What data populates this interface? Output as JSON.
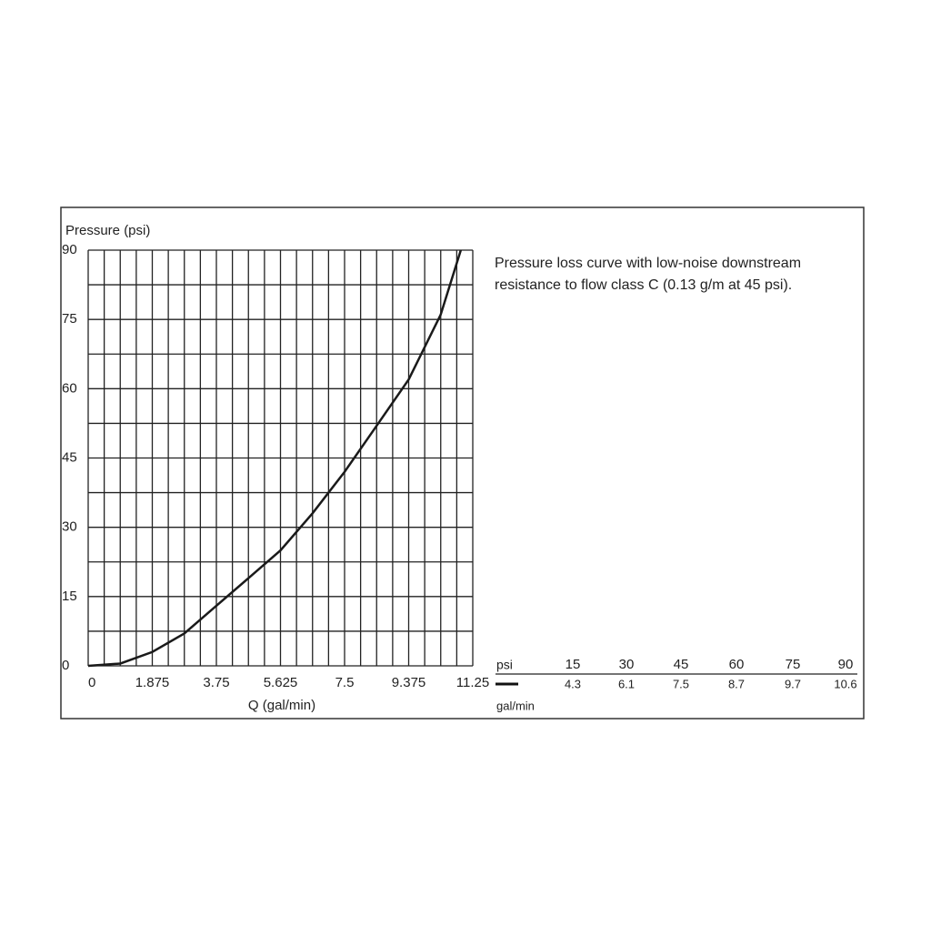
{
  "chart_data": {
    "type": "line",
    "y_label": "Pressure (psi)",
    "x_label": "Q (gal/min)",
    "annotation": "Pressure loss curve with low-noise downstream resistance to flow class C (0.13 g/m at 45 psi).",
    "x": [
      0,
      0.94,
      1.875,
      2.81,
      3.75,
      4.69,
      5.625,
      6.56,
      7.5,
      8.44,
      9.375,
      10.31,
      10.9
    ],
    "series": [
      {
        "name": "Pressure loss",
        "color": "#1a1a1a",
        "values": [
          0,
          0.5,
          3,
          7,
          13,
          19,
          25,
          33,
          42,
          52,
          62,
          76,
          90
        ]
      }
    ],
    "xlim": [
      0,
      11.25
    ],
    "ylim": [
      0,
      90
    ],
    "xticks": [
      0,
      1.875,
      3.75,
      5.625,
      7.5,
      9.375,
      11.25
    ],
    "yticks": [
      0,
      15,
      30,
      45,
      60,
      75,
      90
    ],
    "x_grid": [
      0,
      0.46875,
      0.9375,
      1.40625,
      1.875,
      2.34375,
      2.8125,
      3.28125,
      3.75,
      4.21875,
      4.6875,
      5.15625,
      5.625,
      6.09375,
      6.5625,
      7.03125,
      7.5,
      7.96875,
      8.4375,
      8.90625,
      9.375,
      9.84375,
      10.3125,
      10.78125,
      11.25
    ],
    "y_grid": [
      0,
      7.5,
      15,
      22.5,
      30,
      37.5,
      45,
      52.5,
      60,
      67.5,
      75,
      82.5,
      90
    ],
    "table": {
      "header_label": "psi",
      "headers": [
        15,
        30,
        45,
        60,
        75,
        90
      ],
      "row_label": "gal/min",
      "values": [
        4.3,
        6.1,
        7.5,
        8.7,
        9.7,
        10.6
      ]
    }
  }
}
